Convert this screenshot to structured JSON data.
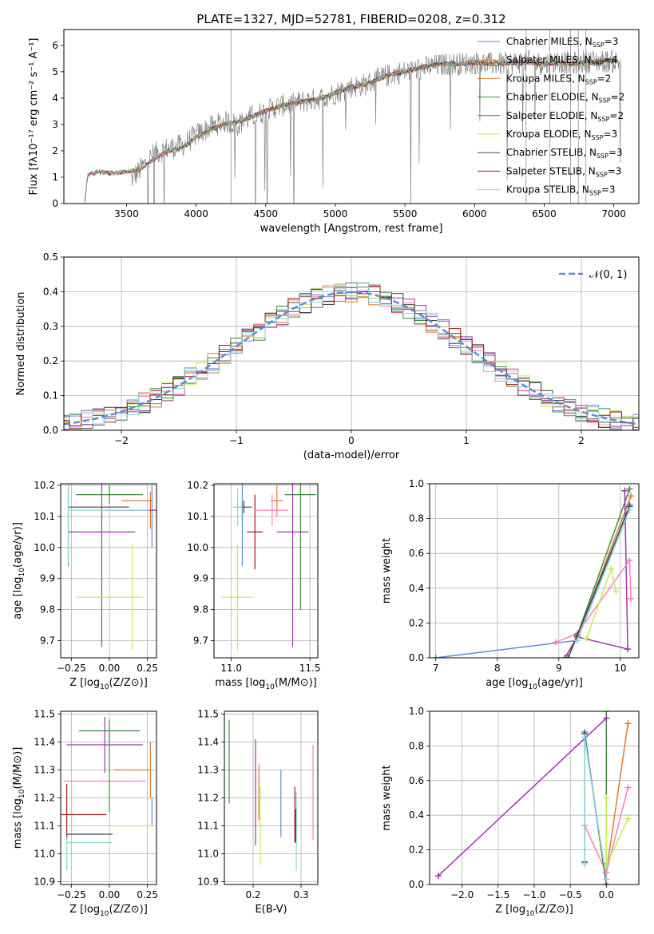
{
  "figure_title": "PLATE=1327, MJD=52781, FIBERID=0208, z=0.312",
  "series_names": [
    "Chabrier MILES",
    "Salpeter MILES",
    "Kroupa MILES",
    "Chabrier ELODIE",
    "Salpeter ELODIE",
    "Kroupa ELODIE",
    "Chabrier STELIB",
    "Salpeter STELIB",
    "Kroupa STELIB"
  ],
  "series_colors": [
    "#5b8bd6",
    "#e07b2a",
    "#e07b2a",
    "#3f8a3f",
    "#a033b0",
    "#c9e85a",
    "#444444",
    "#a01818",
    "#88d6d6"
  ],
  "chart_data": [
    {
      "type": "line",
      "title": "PLATE=1327, MJD=52781, FIBERID=0208, z=0.312",
      "xlabel": "wavelength [Angstrom, rest frame]",
      "ylabel": "Flux [fλ10⁻¹⁷ erg cm⁻² s⁻¹ A⁻¹]",
      "xlim": [
        3050,
        7180
      ],
      "ylim": [
        0,
        6.6
      ],
      "xticks": [
        3500,
        4000,
        4500,
        5000,
        5500,
        6000,
        6500,
        7000
      ],
      "yticks": [
        0,
        1,
        2,
        3,
        4,
        5,
        6
      ],
      "grid": false,
      "legend_position": "right",
      "data_color": "#808080",
      "data_x": [
        3530,
        3600,
        3700,
        3800,
        3900,
        4000,
        4100,
        4200,
        4300,
        4400,
        4500,
        4600,
        4700,
        4800,
        4900,
        5000,
        5100,
        5200,
        5300,
        5400,
        5500,
        5600,
        5700,
        5800,
        5900,
        6000,
        6100,
        6200,
        6300,
        6400,
        6500,
        6600,
        6700,
        6800,
        6900,
        7000,
        7050
      ],
      "data_y": [
        0.9,
        1.3,
        1.9,
        2.1,
        2.2,
        2.6,
        2.9,
        3.1,
        3.0,
        3.3,
        3.5,
        3.7,
        3.8,
        3.9,
        4.0,
        4.2,
        4.4,
        4.5,
        4.7,
        4.9,
        5.0,
        5.1,
        5.2,
        5.3,
        5.3,
        5.35,
        5.3,
        5.3,
        5.35,
        5.4,
        5.3,
        5.4,
        5.3,
        5.4,
        5.4,
        5.4,
        5.4
      ],
      "model_x": [
        3200,
        3220,
        3300,
        3400,
        3500,
        3600,
        3700,
        3800,
        3900,
        4000,
        4100,
        4200,
        4300,
        4400,
        4500,
        4600,
        4700,
        4800,
        4900,
        5000,
        5100,
        5200,
        5300,
        5400,
        5500,
        5600,
        5700,
        5800,
        5900,
        6000,
        6100,
        6200,
        6300,
        6400,
        6500,
        6600,
        6700,
        6800,
        6900,
        7000,
        7030
      ],
      "model_y": [
        0.0,
        1.1,
        1.2,
        1.15,
        1.2,
        1.3,
        1.7,
        2.0,
        2.1,
        2.5,
        2.8,
        3.0,
        3.1,
        3.3,
        3.5,
        3.7,
        3.8,
        3.9,
        4.0,
        4.2,
        4.4,
        4.5,
        4.7,
        4.9,
        5.0,
        5.15,
        5.25,
        5.3,
        5.3,
        5.35,
        5.3,
        5.3,
        5.35,
        5.35,
        5.3,
        5.35,
        5.3,
        5.35,
        5.4,
        5.4,
        5.4
      ],
      "legend": [
        {
          "base": "Chabrier MILES, N",
          "sub": "SSP",
          "tail": "=3"
        },
        {
          "base": "Salpeter MILES, N",
          "sub": "SSP",
          "tail": "=4"
        },
        {
          "base": "Kroupa MILES, N",
          "sub": "SSP",
          "tail": "=2"
        },
        {
          "base": "Chabrier ELODIE, N",
          "sub": "SSP",
          "tail": "=2"
        },
        {
          "base": "Salpeter ELODIE, N",
          "sub": "SSP",
          "tail": "=2"
        },
        {
          "base": "Kroupa ELODIE, N",
          "sub": "SSP",
          "tail": "=3"
        },
        {
          "base": "Chabrier STELIB, N",
          "sub": "SSP",
          "tail": "=3"
        },
        {
          "base": "Salpeter STELIB, N",
          "sub": "SSP",
          "tail": "=3"
        },
        {
          "base": "Kroupa STELIB, N",
          "sub": "SSP",
          "tail": "=3"
        }
      ]
    },
    {
      "type": "histogram",
      "xlabel": "(data-model)/error",
      "ylabel": "Normed distribution",
      "xlim": [
        -2.5,
        2.5
      ],
      "ylim": [
        0,
        0.5
      ],
      "xticks": [
        -2,
        -1,
        0,
        1,
        2
      ],
      "yticks": [
        0.0,
        0.1,
        0.2,
        0.3,
        0.4,
        0.5
      ],
      "grid": true,
      "bin_width": 0.1,
      "legend_label": "𝒩(0, 1)",
      "normal_curve": {
        "mean": 0,
        "sigma": 1,
        "color": "#5b8bd6",
        "dashed": true
      }
    },
    {
      "type": "errorbar",
      "xlabel": "Z [log10(Z/Z⊙)]",
      "ylabel": "age  [log10(age/yr)]",
      "xlim": [
        -0.32,
        0.31
      ],
      "ylim": [
        9.645,
        10.205
      ],
      "xticks": [
        -0.25,
        0.0,
        0.25
      ],
      "yticks": [
        9.7,
        9.8,
        9.9,
        10.0,
        10.1,
        10.2
      ],
      "grid": true,
      "points": [
        {
          "x": -0.27,
          "y": 10.13,
          "xerr": 0.0,
          "yerr": 0.19,
          "color": "#5b8bd6"
        },
        {
          "x": 0.28,
          "y": 10.1,
          "xerr": 0.0,
          "yerr": 0.1,
          "color": "#5b8bd6"
        },
        {
          "x": 0.27,
          "y": 10.12,
          "xerr": 0.0,
          "yerr": 0.06,
          "color": "#e07b2a"
        },
        {
          "x": 0.18,
          "y": 10.15,
          "xerr": 0.1,
          "yerr": 0.0,
          "color": "#e07b2a"
        },
        {
          "x": 0.0,
          "y": 10.17,
          "xerr": 0.22,
          "yerr": 0.03,
          "color": "#3f8a3f"
        },
        {
          "x": -0.05,
          "y": 10.05,
          "xerr": 0.22,
          "yerr": 0.37,
          "color": "#a033b0"
        },
        {
          "x": 0.15,
          "y": 10.12,
          "xerr": 0.17,
          "yerr": 0.0,
          "color": "#a033b0"
        },
        {
          "x": 0.0,
          "y": 9.84,
          "xerr": 0.22,
          "yerr": 0.0,
          "color": "#c9e85a"
        },
        {
          "x": 0.15,
          "y": 9.84,
          "xerr": 0.0,
          "yerr": 0.17,
          "color": "#c9e85a"
        },
        {
          "x": -0.07,
          "y": 10.13,
          "xerr": 0.2,
          "yerr": 0.0,
          "color": "#444444"
        },
        {
          "x": -0.27,
          "y": 10.13,
          "xerr": 0.0,
          "yerr": 0.18,
          "color": "#88d6d6"
        },
        {
          "x": 0.0,
          "y": 10.12,
          "xerr": 0.26,
          "yerr": 0.0,
          "color": "#88d6d6"
        }
      ]
    },
    {
      "type": "errorbar",
      "xlabel": "mass [log10(M/M⊙)]",
      "ylabel": "",
      "xlim": [
        10.89,
        11.55
      ],
      "ylim": [
        9.645,
        10.205
      ],
      "xticks": [
        11.0,
        11.5
      ],
      "yticks": [
        9.7,
        9.8,
        9.9,
        10.0,
        10.1,
        10.2
      ],
      "grid": true,
      "points": [
        {
          "x": 11.07,
          "y": 10.13,
          "xerr": 0.0,
          "yerr": 0.19,
          "color": "#5b8bd6"
        },
        {
          "x": 11.29,
          "y": 10.15,
          "xerr": 0.04,
          "yerr": 0.05,
          "color": "#e07b2a"
        },
        {
          "x": 11.44,
          "y": 10.17,
          "xerr": 0.1,
          "yerr": 0.37,
          "color": "#3f8a3f"
        },
        {
          "x": 11.39,
          "y": 10.05,
          "xerr": 0.1,
          "yerr": 0.37,
          "color": "#a033b0"
        },
        {
          "x": 11.26,
          "y": 10.12,
          "xerr": 0.1,
          "yerr": 0.05,
          "color": "#ff7fbf"
        },
        {
          "x": 11.04,
          "y": 9.84,
          "xerr": 0.1,
          "yerr": 0.17,
          "color": "#c9e85a"
        },
        {
          "x": 11.08,
          "y": 10.13,
          "xerr": 0.05,
          "yerr": 0.02,
          "color": "#444444"
        },
        {
          "x": 11.15,
          "y": 10.05,
          "xerr": 0.05,
          "yerr": 0.12,
          "color": "#a01818"
        },
        {
          "x": 11.04,
          "y": 10.13,
          "xerr": 0.03,
          "yerr": 0.06,
          "color": "#88d6d6"
        }
      ]
    },
    {
      "type": "line",
      "xlabel": "age  [log10(age/yr)]",
      "ylabel": "mass weight",
      "xlim": [
        6.9,
        10.3
      ],
      "ylim": [
        0,
        1.0
      ],
      "xticks": [
        7,
        8,
        9,
        10
      ],
      "yticks": [
        0.0,
        0.2,
        0.4,
        0.6,
        0.8,
        1.0
      ],
      "grid": true,
      "series": [
        {
          "x": [
            7.0,
            9.3,
            10.15
          ],
          "y": [
            0.0,
            0.1,
            0.88
          ],
          "color": "#5b8bd6"
        },
        {
          "x": [
            9.1,
            9.3,
            10.17
          ],
          "y": [
            0.0,
            0.12,
            0.93
          ],
          "color": "#e07b2a"
        },
        {
          "x": [
            9.15,
            9.3,
            10.15
          ],
          "y": [
            0.0,
            0.13,
            0.97
          ],
          "color": "#3f8a3f"
        },
        {
          "x": [
            9.1,
            9.3,
            10.12,
            10.07
          ],
          "y": [
            0.0,
            0.12,
            0.05,
            0.96
          ],
          "color": "#a033b0"
        },
        {
          "x": [
            8.95,
            9.3,
            10.15,
            10.17
          ],
          "y": [
            0.09,
            0.14,
            0.56,
            0.34
          ],
          "color": "#ff7fbf"
        },
        {
          "x": [
            9.45,
            9.85,
            9.93
          ],
          "y": [
            0.11,
            0.51,
            0.38
          ],
          "color": "#c9e85a"
        },
        {
          "x": [
            9.15,
            9.3,
            10.15
          ],
          "y": [
            0.0,
            0.13,
            0.87
          ],
          "color": "#444444"
        },
        {
          "x": [
            9.3,
            10.15
          ],
          "y": [
            0.1,
            0.85
          ],
          "color": "#88d6d6"
        }
      ]
    },
    {
      "type": "errorbar",
      "xlabel": "Z [log10(Z/Z⊙)]",
      "ylabel": "mass [log10(M/M⊙)]",
      "xlim": [
        -0.32,
        0.31
      ],
      "ylim": [
        10.89,
        11.51
      ],
      "xticks": [
        -0.25,
        0.0,
        0.25
      ],
      "yticks": [
        10.9,
        11.0,
        11.1,
        11.2,
        11.3,
        11.4,
        11.5
      ],
      "grid": true,
      "points": [
        {
          "x": 0.28,
          "y": 11.15,
          "xerr": 0.0,
          "yerr": 0.05,
          "color": "#5b8bd6"
        },
        {
          "x": 0.27,
          "y": 11.3,
          "xerr": 0.0,
          "yerr": 0.1,
          "color": "#e07b2a"
        },
        {
          "x": 0.15,
          "y": 11.3,
          "xerr": 0.12,
          "yerr": 0.0,
          "color": "#e07b2a"
        },
        {
          "x": 0.0,
          "y": 11.44,
          "xerr": 0.2,
          "yerr": 0.04,
          "color": "#3f8a3f"
        },
        {
          "x": -0.03,
          "y": 11.39,
          "xerr": 0.25,
          "yerr": 0.1,
          "color": "#a033b0"
        },
        {
          "x": -0.03,
          "y": 11.26,
          "xerr": 0.27,
          "yerr": 0.0,
          "color": "#ff7fbf"
        },
        {
          "x": 0.15,
          "y": 11.1,
          "xerr": 0.15,
          "yerr": 0.0,
          "color": "#c9e85a"
        },
        {
          "x": -0.17,
          "y": 11.14,
          "xerr": 0.15,
          "yerr": 0.0,
          "color": "#a01818"
        },
        {
          "x": -0.28,
          "y": 11.15,
          "xerr": 0.0,
          "yerr": 0.1,
          "color": "#a01818"
        },
        {
          "x": -0.13,
          "y": 11.07,
          "xerr": 0.15,
          "yerr": 0.0,
          "color": "#444444"
        },
        {
          "x": -0.13,
          "y": 11.04,
          "xerr": 0.15,
          "yerr": 0.0,
          "color": "#88d6d6"
        },
        {
          "x": -0.28,
          "y": 11.0,
          "xerr": 0.0,
          "yerr": 0.06,
          "color": "#88d6d6"
        },
        {
          "x": 0.0,
          "y": 11.3,
          "xerr": 0.0,
          "yerr": 0.15,
          "color": "#3f8a3f"
        }
      ]
    },
    {
      "type": "errorbar",
      "xlabel": "E(B-V)",
      "ylabel": "",
      "xlim": [
        0.14,
        0.335
      ],
      "ylim": [
        10.89,
        11.51
      ],
      "xticks": [
        0.1,
        0.2,
        0.3
      ],
      "yticks": [
        10.9,
        11.0,
        11.1,
        11.2,
        11.3,
        11.4,
        11.5
      ],
      "grid": true,
      "points": [
        {
          "x": 0.15,
          "y": 11.33,
          "xerr": 0.0,
          "yerr": 0.15,
          "color": "#3f8a3f"
        },
        {
          "x": 0.205,
          "y": 11.22,
          "xerr": 0.0,
          "yerr": 0.19,
          "color": "#a033b0"
        },
        {
          "x": 0.212,
          "y": 11.22,
          "xerr": 0.0,
          "yerr": 0.1,
          "color": "#e07b2a"
        },
        {
          "x": 0.215,
          "y": 11.1,
          "xerr": 0.0,
          "yerr": 0.14,
          "color": "#c9e85a"
        },
        {
          "x": 0.258,
          "y": 11.18,
          "xerr": 0.0,
          "yerr": 0.12,
          "color": "#5b8bd6"
        },
        {
          "x": 0.287,
          "y": 11.14,
          "xerr": 0.0,
          "yerr": 0.1,
          "color": "#a01818"
        },
        {
          "x": 0.29,
          "y": 11.08,
          "xerr": 0.0,
          "yerr": 0.14,
          "color": "#88d6d6"
        },
        {
          "x": 0.289,
          "y": 11.1,
          "xerr": 0.0,
          "yerr": 0.06,
          "color": "#444444"
        },
        {
          "x": 0.325,
          "y": 11.22,
          "xerr": 0.0,
          "yerr": 0.17,
          "color": "#ff7fbf"
        }
      ]
    },
    {
      "type": "line",
      "xlabel": "Z [log10(Z/Z⊙)]",
      "ylabel": "mass weight",
      "xlim": [
        -2.45,
        0.45
      ],
      "ylim": [
        0,
        1.0
      ],
      "xticks": [
        -2.0,
        -1.5,
        -1.0,
        -0.5,
        0.0
      ],
      "yticks": [
        0.0,
        0.2,
        0.4,
        0.6,
        0.8,
        1.0
      ],
      "grid": true,
      "series": [
        {
          "x": [
            -0.3,
            0.0,
            0.0
          ],
          "y": [
            0.88,
            0.0,
            0.12
          ],
          "color": "#5b8bd6"
        },
        {
          "x": [
            0.0,
            0.3
          ],
          "y": [
            0.07,
            0.93
          ],
          "color": "#e07b2a"
        },
        {
          "x": [
            0.0,
            0.0
          ],
          "y": [
            0.0,
            1.0
          ],
          "color": "#3f8a3f"
        },
        {
          "x": [
            -2.33,
            0.0
          ],
          "y": [
            0.05,
            0.96
          ],
          "color": "#a033b0"
        },
        {
          "x": [
            -0.3,
            0.0,
            0.3
          ],
          "y": [
            0.34,
            0.07,
            0.56
          ],
          "color": "#ff7fbf"
        },
        {
          "x": [
            0.0,
            0.0,
            0.3
          ],
          "y": [
            0.5,
            0.11,
            0.38
          ],
          "color": "#c9e85a"
        },
        {
          "x": [
            -0.3,
            -0.3,
            0.0
          ],
          "y": [
            0.13,
            0.87,
            0.0
          ],
          "color": "#444444"
        },
        {
          "x": [
            -0.3,
            -0.3,
            0.0
          ],
          "y": [
            0.12,
            0.85,
            0.03
          ],
          "color": "#88d6d6"
        }
      ]
    }
  ]
}
